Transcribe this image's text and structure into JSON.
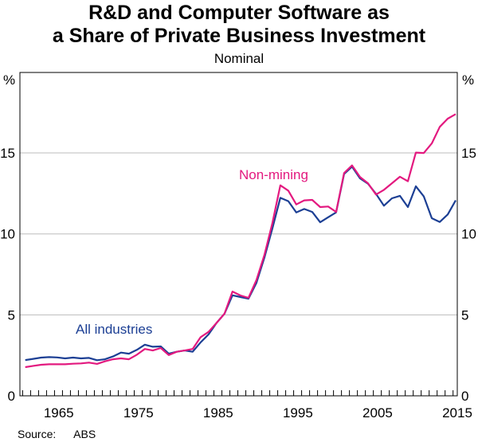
{
  "chart_data": {
    "type": "line",
    "title": "R&D and Computer Software as a Share of Private Business Investment",
    "title_lines": [
      "R&D and Computer Software as",
      "a Share of Private Business Investment"
    ],
    "subtitle": "Nominal",
    "ylabel_left": "%",
    "ylabel_right": "%",
    "ylim": [
      0,
      20
    ],
    "yticks": [
      0,
      5,
      10,
      15
    ],
    "xlim": [
      1960.33,
      2015.2
    ],
    "xtick_labels": [
      "1965",
      "1975",
      "1985",
      "1995",
      "2005",
      "2015"
    ],
    "grid": true,
    "x": [
      1961,
      1962,
      1963,
      1964,
      1965,
      1966,
      1967,
      1968,
      1969,
      1970,
      1971,
      1972,
      1973,
      1974,
      1975,
      1976,
      1977,
      1978,
      1979,
      1980,
      1981,
      1982,
      1983,
      1984,
      1985,
      1986,
      1987,
      1988,
      1989,
      1990,
      1991,
      1992,
      1993,
      1994,
      1995,
      1996,
      1997,
      1998,
      1999,
      2000,
      2001,
      2002,
      2003,
      2004,
      2005,
      2006,
      2007,
      2008,
      2009,
      2010,
      2011,
      2012,
      2013,
      2014,
      2015
    ],
    "series": [
      {
        "name": "All industries",
        "color": "#1c3f94",
        "values": [
          2.21,
          2.28,
          2.36,
          2.39,
          2.37,
          2.31,
          2.36,
          2.31,
          2.34,
          2.2,
          2.26,
          2.43,
          2.67,
          2.6,
          2.84,
          3.16,
          3.03,
          3.05,
          2.6,
          2.72,
          2.8,
          2.72,
          3.3,
          3.79,
          4.5,
          5.07,
          6.21,
          6.1,
          6.0,
          6.98,
          8.54,
          10.34,
          12.23,
          12.02,
          11.33,
          11.54,
          11.36,
          10.72,
          11.03,
          11.33,
          13.7,
          14.15,
          13.43,
          13.1,
          12.48,
          11.74,
          12.2,
          12.35,
          11.66,
          12.94,
          12.31,
          10.97,
          10.74,
          11.2,
          12.07
        ]
      },
      {
        "name": "Non-mining",
        "color": "#e3197f",
        "values": [
          1.77,
          1.85,
          1.92,
          1.95,
          1.95,
          1.95,
          1.98,
          2.0,
          2.05,
          1.97,
          2.13,
          2.26,
          2.31,
          2.26,
          2.54,
          2.89,
          2.8,
          2.95,
          2.52,
          2.72,
          2.8,
          2.89,
          3.62,
          3.95,
          4.5,
          5.07,
          6.44,
          6.2,
          6.05,
          7.15,
          8.7,
          10.67,
          13.0,
          12.67,
          11.82,
          12.07,
          12.1,
          11.66,
          11.69,
          11.36,
          13.76,
          14.23,
          13.51,
          13.13,
          12.43,
          12.72,
          13.13,
          13.53,
          13.25,
          15.02,
          15.0,
          15.59,
          16.61,
          17.12,
          17.4
        ]
      }
    ],
    "source_label": "Source:",
    "source": "ABS"
  }
}
